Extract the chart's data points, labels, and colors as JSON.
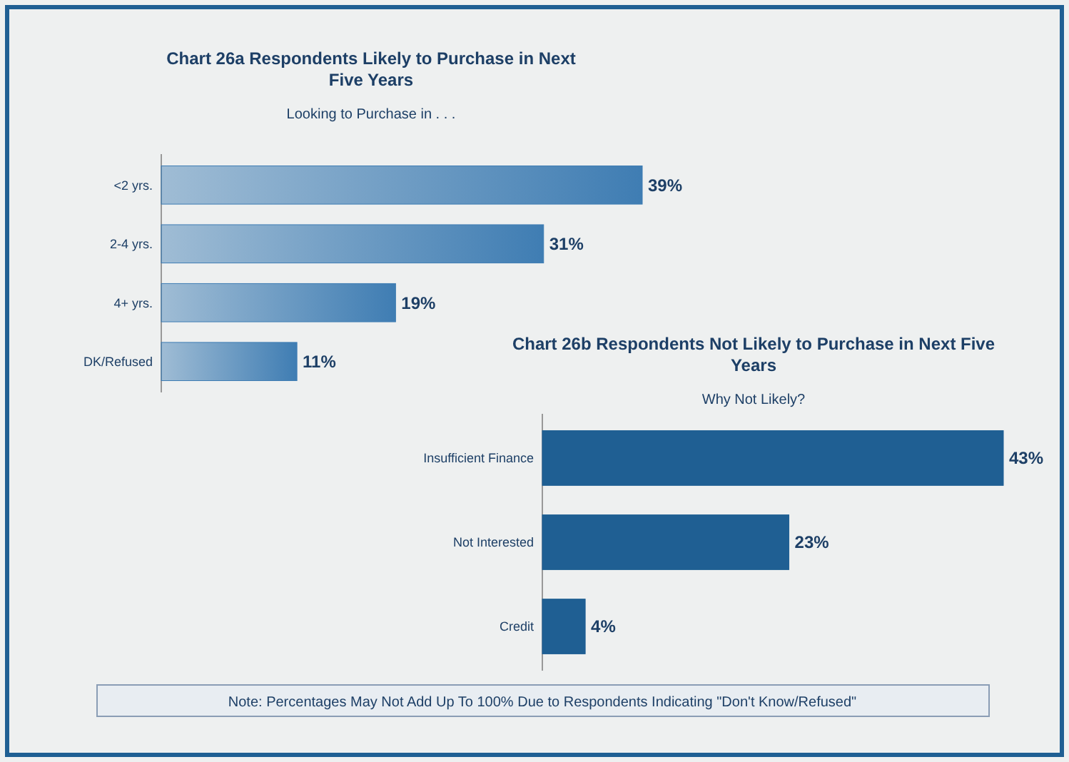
{
  "chart_data": [
    {
      "type": "bar",
      "orientation": "horizontal",
      "title": "Chart 26a  Respondents Likely to Purchase in Next Five Years",
      "subtitle": "Looking to Purchase in . . .",
      "categories": [
        "<2 yrs.",
        "2-4 yrs.",
        "4+ yrs.",
        "DK/Refused"
      ],
      "values": [
        39,
        31,
        19,
        11
      ],
      "value_labels": [
        "39%",
        "31%",
        "19%",
        "11%"
      ],
      "color": "#3f7db3"
    },
    {
      "type": "bar",
      "orientation": "horizontal",
      "title": "Chart 26b  Respondents Not Likely to Purchase in Next Five Years",
      "subtitle": "Why Not Likely?",
      "categories": [
        "Insufficient Finance",
        "Not Interested",
        "Credit"
      ],
      "values": [
        43,
        23,
        4
      ],
      "value_labels": [
        "43%",
        "23%",
        "4%"
      ],
      "color": "#1f5f93",
      "annotations": [
        "Note: Percentages May Not Add Up To 100% Due to Respondents Indicating \"Don't Know/Refused\""
      ]
    }
  ]
}
